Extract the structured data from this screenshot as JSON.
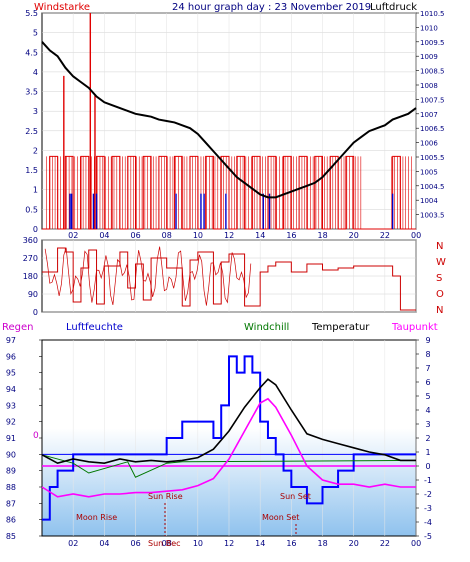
{
  "header": {
    "wind_label": "Windstarke",
    "title": "24 hour graph day : 23 November 2019",
    "pressure_label": "Luftdruck"
  },
  "direction_labels": [
    "N",
    "W",
    "S",
    "O",
    "N"
  ],
  "legend": {
    "rain": "Regen",
    "humidity": "Luftfeuchte",
    "windchill": "Windchill",
    "temperature": "Temperatur",
    "dewpoint": "Taupunkt"
  },
  "annotations": {
    "moon_rise": "Moon Rise",
    "moon_set": "Moon Set",
    "sun_rise": "Sun Rise",
    "sun_set": "Sun Set",
    "sun_bottom": "Sun Bec",
    "zero_line": "0"
  },
  "colors": {
    "wind": "#e00000",
    "gust": "#0000cc",
    "pressure": "#000000",
    "direction": "#cc0000",
    "humidity": "#0000ff",
    "temperature": "#000000",
    "dewpoint": "#ff00ff",
    "windchill": "#007700",
    "title": "#000080"
  },
  "chart_data": [
    {
      "type": "line",
      "name": "wind-and-pressure",
      "x_ticks": [
        "02",
        "04",
        "06",
        "08",
        "10",
        "12",
        "14",
        "16",
        "18",
        "20",
        "22",
        "00"
      ],
      "y_left_ticks": [
        "0",
        "0.5",
        "1",
        "1.5",
        "2",
        "2.5",
        "3",
        "3.5",
        "4",
        "4.5",
        "5",
        "5.5"
      ],
      "y_left_range": [
        0,
        5.5
      ],
      "y_right_ticks": [
        "1003.5",
        "1004",
        "1004.5",
        "1005",
        "1005.5",
        "1006",
        "1006.5",
        "1007",
        "1007.5",
        "1008",
        "1008.5",
        "1009",
        "1009.5",
        "1010",
        "1010.5"
      ],
      "y_right_range": [
        1003,
        1010.5
      ],
      "x_range_hours": [
        0,
        24
      ],
      "pressure": {
        "x": [
          0,
          0.5,
          1,
          1.5,
          2,
          2.5,
          3,
          3.5,
          4,
          4.5,
          5,
          5.5,
          6,
          6.5,
          7,
          7.5,
          8,
          8.5,
          9,
          9.5,
          10,
          10.5,
          11,
          11.5,
          12,
          12.5,
          13,
          13.5,
          14,
          14.5,
          15,
          15.5,
          16,
          16.5,
          17,
          17.5,
          18,
          18.5,
          19,
          19.5,
          20,
          20.5,
          21,
          21.5,
          22,
          22.5,
          23,
          23.5,
          24
        ],
        "y": [
          1009.5,
          1009.2,
          1009.0,
          1008.6,
          1008.3,
          1008.1,
          1007.9,
          1007.6,
          1007.4,
          1007.3,
          1007.2,
          1007.1,
          1007.0,
          1006.95,
          1006.9,
          1006.8,
          1006.75,
          1006.7,
          1006.6,
          1006.5,
          1006.3,
          1006.0,
          1005.7,
          1005.4,
          1005.1,
          1004.8,
          1004.6,
          1004.4,
          1004.2,
          1004.1,
          1004.1,
          1004.2,
          1004.3,
          1004.4,
          1004.5,
          1004.6,
          1004.8,
          1005.1,
          1005.4,
          1005.7,
          1006.0,
          1006.2,
          1006.4,
          1006.5,
          1006.6,
          1006.8,
          1006.9,
          1007.0,
          1007.2
        ]
      },
      "wind_gust_spikes": [
        {
          "x": 3.1,
          "y": 5.5
        },
        {
          "x": 3.4,
          "y": 3.4
        },
        {
          "x": 1.4,
          "y": 3.9
        }
      ],
      "wind_step": {
        "x": [
          0,
          0.5,
          1,
          1.5,
          2,
          2.5,
          3,
          3.5,
          4,
          4.5,
          5,
          5.5,
          6,
          6.5,
          7,
          7.5,
          8,
          8.5,
          9,
          9.5,
          10,
          10.5,
          11,
          11.5,
          12,
          12.5,
          13,
          13.5,
          14,
          14.5,
          15,
          15.5,
          16,
          16.5,
          17,
          17.5,
          18,
          18.5,
          19,
          19.5,
          20,
          20.5,
          21,
          21.5,
          22,
          22.5,
          23,
          23.5,
          24
        ],
        "y": [
          0,
          1.85,
          0,
          1.85,
          0,
          1.85,
          0,
          1.85,
          0,
          1.85,
          0,
          1.85,
          0,
          1.85,
          0,
          1.85,
          0,
          1.85,
          0,
          1.85,
          0,
          1.85,
          0,
          1.85,
          0,
          1.85,
          0,
          1.85,
          0,
          1.85,
          0,
          1.85,
          0,
          1.85,
          0,
          1.85,
          0,
          1.85,
          0,
          1.85,
          0,
          0,
          0,
          0,
          0,
          1.85,
          0,
          0,
          0
        ]
      }
    },
    {
      "type": "line",
      "name": "wind-direction",
      "y_ticks": [
        "0",
        "90",
        "180",
        "270",
        "360"
      ],
      "y_range": [
        0,
        360
      ],
      "x_range_hours": [
        0,
        24
      ],
      "direction": {
        "x": [
          0,
          1,
          1.5,
          2,
          2.5,
          3,
          3.5,
          4,
          5,
          5.5,
          6,
          6.5,
          7,
          8,
          9,
          9.5,
          10,
          11,
          11.5,
          12,
          13,
          14,
          14.5,
          15,
          16,
          17,
          18,
          19,
          20,
          21,
          22,
          22.5,
          23,
          24
        ],
        "y": [
          200,
          320,
          300,
          50,
          220,
          310,
          40,
          230,
          300,
          120,
          240,
          60,
          270,
          220,
          30,
          260,
          300,
          40,
          250,
          290,
          30,
          200,
          230,
          250,
          200,
          240,
          210,
          220,
          230,
          230,
          230,
          180,
          10,
          10
        ]
      }
    },
    {
      "type": "line",
      "name": "temperature-humidity",
      "x_ticks": [
        "02",
        "04",
        "06",
        "08",
        "10",
        "12",
        "14",
        "16",
        "18",
        "20",
        "22",
        "00"
      ],
      "y_left_ticks": [
        "85",
        "86",
        "87",
        "88",
        "89",
        "90",
        "91",
        "92",
        "93",
        "94",
        "95",
        "96",
        "97"
      ],
      "y_left_range": [
        85,
        97
      ],
      "y_right_ticks": [
        "-5",
        "-4",
        "-3",
        "-2",
        "-1",
        "0",
        "1",
        "2",
        "3",
        "4",
        "5",
        "6",
        "7",
        "8",
        "9"
      ],
      "y_right_range": [
        -5,
        9
      ],
      "x_range_hours": [
        0,
        24
      ],
      "temperature": {
        "x": [
          0,
          1,
          2,
          3,
          4,
          5,
          6,
          7,
          8,
          9,
          10,
          11,
          12,
          13,
          14,
          14.5,
          15,
          16,
          17,
          18,
          19,
          20,
          21,
          22,
          23,
          24
        ],
        "y": [
          0.8,
          0.2,
          0.5,
          0.3,
          0.2,
          0.5,
          0.3,
          0.4,
          0.3,
          0.4,
          0.6,
          1.2,
          2.5,
          4.2,
          5.6,
          6.2,
          5.8,
          4.0,
          2.3,
          1.9,
          1.6,
          1.3,
          1.0,
          0.8,
          0.4,
          0.4
        ]
      },
      "dewpoint": {
        "x": [
          0,
          1,
          2,
          3,
          4,
          5,
          6,
          7,
          8,
          9,
          10,
          11,
          12,
          13,
          14,
          14.5,
          15,
          16,
          17,
          18,
          19,
          20,
          21,
          22,
          23,
          24
        ],
        "y": [
          -1.5,
          -2.2,
          -2.0,
          -2.2,
          -2.0,
          -2.0,
          -1.9,
          -1.9,
          -1.8,
          -1.7,
          -1.4,
          -0.9,
          0.5,
          2.5,
          4.5,
          4.8,
          4.2,
          2.2,
          0.0,
          -1.0,
          -1.3,
          -1.3,
          -1.5,
          -1.3,
          -1.5,
          -1.5
        ]
      },
      "humidity": {
        "x": [
          0,
          0.5,
          1,
          2,
          3,
          4,
          5,
          6,
          7,
          8,
          9,
          10,
          11,
          11.5,
          12,
          12.5,
          13,
          13.5,
          14,
          14.5,
          15,
          15.5,
          16,
          17,
          18,
          19,
          20,
          21,
          22,
          23,
          24
        ],
        "y": [
          86,
          88,
          89,
          90,
          90,
          90,
          90,
          90,
          90,
          91,
          92,
          92,
          91,
          93,
          96,
          95,
          96,
          95,
          92,
          91,
          90,
          89,
          88,
          87,
          88,
          89,
          90,
          90,
          90,
          90,
          90
        ]
      },
      "windchill": {
        "x": [
          0,
          2,
          3,
          5.5,
          6,
          8,
          9,
          24
        ],
        "y": [
          0.8,
          0.2,
          -0.5,
          0.3,
          -0.8,
          0.2,
          0.3,
          0.4
        ]
      },
      "humidity_baseline": 90
    }
  ]
}
